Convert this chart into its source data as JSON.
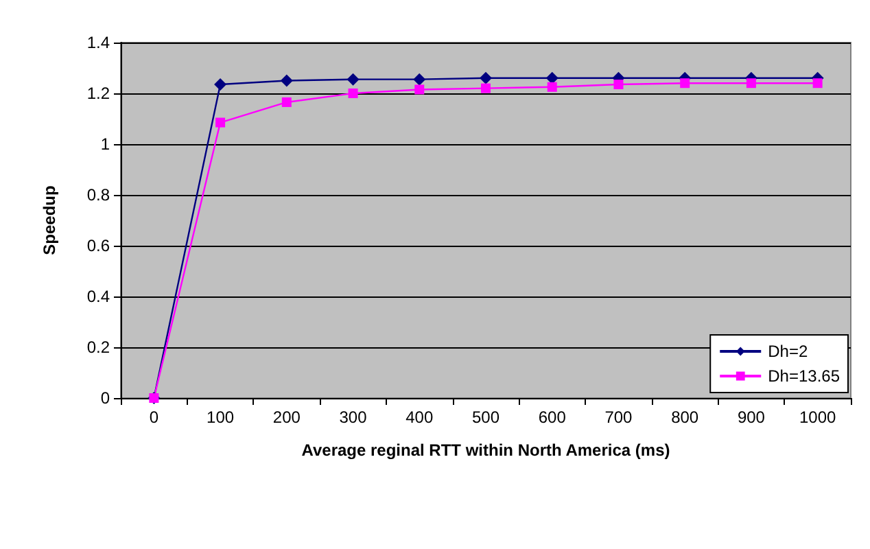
{
  "chart_data": {
    "type": "line",
    "xlabel": "Average reginal RTT within North America (ms)",
    "ylabel": "Speedup",
    "categories": [
      "0",
      "100",
      "200",
      "300",
      "400",
      "500",
      "600",
      "700",
      "800",
      "900",
      "1000"
    ],
    "series": [
      {
        "name": "Dh=2",
        "color": "#000080",
        "marker": "diamond",
        "values": [
          0,
          1.235,
          1.25,
          1.255,
          1.255,
          1.26,
          1.26,
          1.26,
          1.26,
          1.26,
          1.26
        ]
      },
      {
        "name": "Dh=13.65",
        "color": "#ff00ff",
        "marker": "square",
        "values": [
          0,
          1.085,
          1.165,
          1.2,
          1.215,
          1.22,
          1.225,
          1.235,
          1.24,
          1.24,
          1.24
        ]
      }
    ],
    "ylim": [
      0,
      1.4
    ],
    "yticks": [
      0,
      0.2,
      0.4,
      0.6,
      0.8,
      1,
      1.2,
      1.4
    ],
    "grid": "y",
    "legend": "bottom right"
  }
}
